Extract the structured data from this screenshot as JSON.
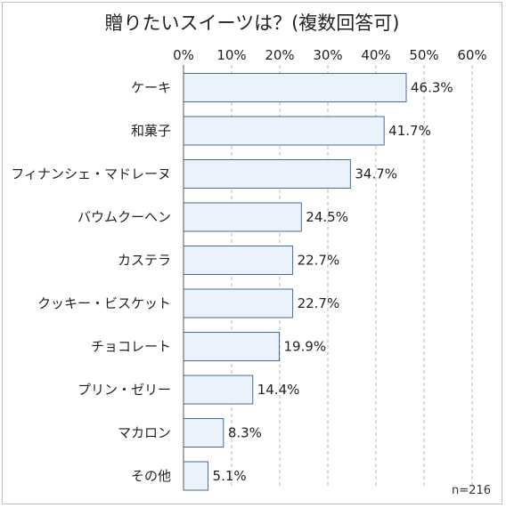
{
  "chart_data": {
    "type": "bar",
    "orientation": "horizontal",
    "title": "贈りたいスイーツは？(複数回答可)",
    "categories": [
      "ケーキ",
      "和菓子",
      "フィナンシェ・マドレーヌ",
      "バウムクーヘン",
      "カステラ",
      "クッキー・ビスケット",
      "チョコレート",
      "プリン・ゼリー",
      "マカロン",
      "その他"
    ],
    "values": [
      46.3,
      41.7,
      34.7,
      24.5,
      22.7,
      22.7,
      19.9,
      14.4,
      8.3,
      5.1
    ],
    "value_labels": [
      "46.3%",
      "41.7%",
      "34.7%",
      "24.5%",
      "22.7%",
      "22.7%",
      "19.9%",
      "14.4%",
      "8.3%",
      "5.1%"
    ],
    "x_ticks": [
      0,
      10,
      20,
      30,
      40,
      50,
      60
    ],
    "x_tick_labels": [
      "0%",
      "10%",
      "20%",
      "30%",
      "40%",
      "50%",
      "60%"
    ],
    "xlim": [
      0,
      60
    ],
    "grid": true,
    "axis_position": "top",
    "note": "n=216",
    "colors": {
      "bar_fill": "#eaf2fb",
      "bar_stroke": "#4a6b9a",
      "grid": "#b8b8b8",
      "axis": "#555555"
    }
  }
}
